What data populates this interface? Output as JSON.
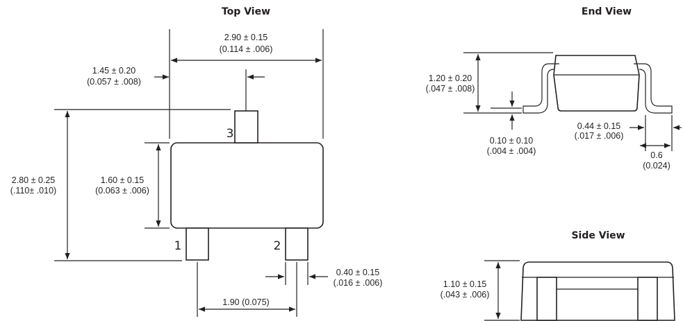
{
  "views": {
    "top": "Top View",
    "end": "End View",
    "side": "Side View"
  },
  "pins": [
    "1",
    "2",
    "3"
  ],
  "dims": {
    "width_mm": "2.90 ± 0.15",
    "width_in": "(0.114 ± .006)",
    "lead3_offset_mm": "1.45 ± 0.20",
    "lead3_offset_in": "(0.057 ± .008)",
    "total_height_mm": "2.80 ± 0.25",
    "total_height_in": "(.110± .010)",
    "body_height_mm": "1.60 ± 0.15",
    "body_height_in": "(0.063 ± .006)",
    "lead_width_mm": "0.40 ± 0.15",
    "lead_width_in": "(.016 ± .006)",
    "pitch": "1.90 (0.075)",
    "end_height_mm": "1.20 ± 0.20",
    "end_height_in": "(.047 ± .008)",
    "standoff_mm": "0.10 ± 0.10",
    "standoff_in": "(.004 ± .004)",
    "foot_mm": "0.44 ± 0.15",
    "foot_in": "(.017 ± .006)",
    "foot_span_mm": "0.6",
    "foot_span_in": "(0.024)",
    "side_height_mm": "1.10 ± 0.15",
    "side_height_in": "(.043 ± .006)"
  }
}
